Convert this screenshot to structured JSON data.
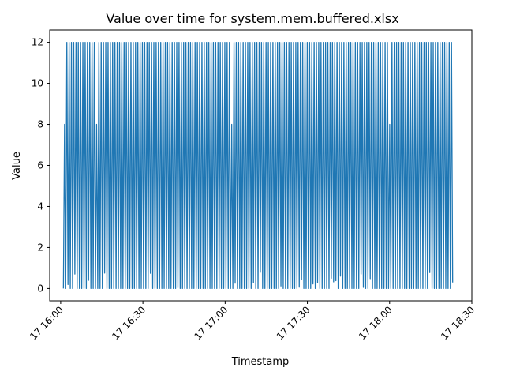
{
  "chart_data": {
    "type": "line",
    "title": "Value over time for system.mem.buffered.xlsx",
    "xlabel": "Timestamp",
    "ylabel": "Value",
    "xlim": [
      "2024-01-17 15:56",
      "2024-01-17 18:30"
    ],
    "ylim": [
      -0.6,
      12.6
    ],
    "x_ticks": [
      "17 16:00",
      "17 16:30",
      "17 17:00",
      "17 17:30",
      "17 18:00",
      "17 18:30"
    ],
    "x_tick_values": [
      "2024-01-17 16:00",
      "2024-01-17 16:30",
      "2024-01-17 17:00",
      "2024-01-17 17:30",
      "2024-01-17 18:00",
      "2024-01-17 18:30"
    ],
    "y_ticks": [
      0,
      2,
      4,
      6,
      8,
      10,
      12
    ],
    "series": [
      {
        "color": "#1f77b4",
        "x_start": "2024-01-17 16:01",
        "x_end": "2024-01-17 18:23",
        "pattern": "oscillates between 0 and 12 at high frequency",
        "peaks": [
          12
        ],
        "troughs": [
          0
        ],
        "partial_peaks": [
          {
            "x": "2024-01-17 16:01",
            "y": 8
          },
          {
            "x": "2024-01-17 16:13",
            "y": 8
          },
          {
            "x": "2024-01-17 17:02",
            "y": 8
          },
          {
            "x": "2024-01-17 18:00",
            "y": 8
          }
        ]
      }
    ],
    "grid": false,
    "legend": "none"
  }
}
